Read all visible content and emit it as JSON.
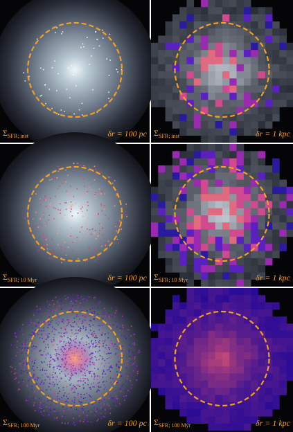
{
  "panels": [
    {
      "symbol": "Σ",
      "subscript": "SFR; inst",
      "resolution": "δr = 100 pc"
    },
    {
      "symbol": "Σ",
      "subscript": "SFR; inst",
      "resolution": "δr = 1 kpc"
    },
    {
      "symbol": "Σ",
      "subscript": "SFR; 10 Myr",
      "resolution": "δr = 100 pc"
    },
    {
      "symbol": "Σ",
      "subscript": "SFR; 10 Myr",
      "resolution": "δr = 1 kpc"
    },
    {
      "symbol": "Σ",
      "subscript": "SFR; 100 Myr",
      "resolution": "δr = 100 pc"
    },
    {
      "symbol": "Σ",
      "subscript": "SFR; 100 Myr",
      "resolution": "δr = 1 kpc"
    }
  ]
}
